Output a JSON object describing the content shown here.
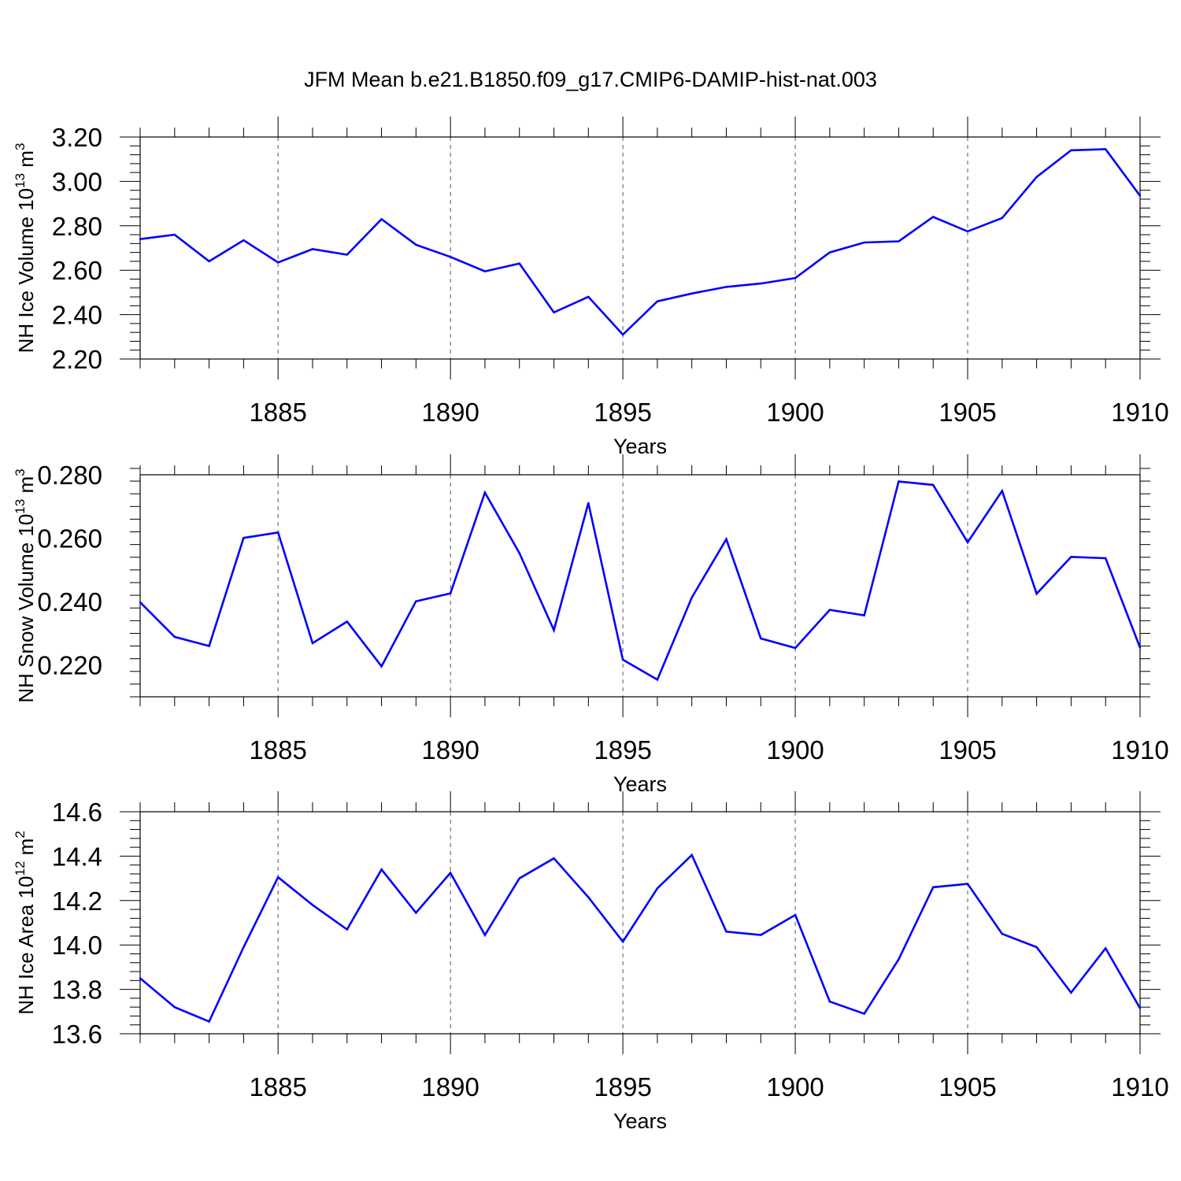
{
  "figure_title": "JFM Mean b.e21.B1850.f09_g17.CMIP6-DAMIP-hist-nat.003",
  "colors": {
    "series": "#0000ff",
    "axis": "#000000",
    "grid": "#555555"
  },
  "chart_data": [
    {
      "type": "line",
      "title": "JFM Mean b.e21.B1850.f09_g17.CMIP6-DAMIP-hist-nat.003",
      "ylabel_base": "NH Ice Volume 10",
      "ylabel_exp": "13",
      "ylabel_unit": " m",
      "ylabel_unit_exp": "3",
      "xlabel": "Years",
      "xlim": [
        1881,
        1910
      ],
      "ylim": [
        2.2,
        3.2
      ],
      "xticks": [
        "1885",
        "1890",
        "1895",
        "1900",
        "1905",
        "1910"
      ],
      "yticks": [
        "2.20",
        "2.40",
        "2.60",
        "2.80",
        "3.00",
        "3.20"
      ],
      "grid": "vertical dashed at major x ticks",
      "x": [
        1881,
        1882,
        1883,
        1884,
        1885,
        1886,
        1887,
        1888,
        1889,
        1890,
        1891,
        1892,
        1893,
        1894,
        1895,
        1896,
        1897,
        1898,
        1899,
        1900,
        1901,
        1902,
        1903,
        1904,
        1905,
        1906,
        1907,
        1908,
        1909,
        1910
      ],
      "series": [
        {
          "name": "NH Ice Volume",
          "values": [
            2.74,
            2.76,
            2.64,
            2.735,
            2.635,
            2.695,
            2.67,
            2.83,
            2.715,
            2.66,
            2.595,
            2.63,
            2.41,
            2.48,
            2.31,
            2.46,
            2.495,
            2.525,
            2.54,
            2.565,
            2.68,
            2.725,
            2.73,
            2.84,
            2.775,
            2.835,
            3.02,
            3.14,
            3.145,
            2.935
          ]
        }
      ]
    },
    {
      "type": "line",
      "ylabel_base": "NH Snow Volume 10",
      "ylabel_exp": "13",
      "ylabel_unit": " m",
      "ylabel_unit_exp": "3",
      "xlabel": "Years",
      "xlim": [
        1881,
        1910
      ],
      "ylim": [
        0.21,
        0.28
      ],
      "xticks": [
        "1885",
        "1890",
        "1895",
        "1900",
        "1905",
        "1910"
      ],
      "yticks": [
        "0.220",
        "0.240",
        "0.260",
        "0.280"
      ],
      "grid": "vertical dashed at major x ticks",
      "x": [
        1881,
        1882,
        1883,
        1884,
        1885,
        1886,
        1887,
        1888,
        1889,
        1890,
        1891,
        1892,
        1893,
        1894,
        1895,
        1896,
        1897,
        1898,
        1899,
        1900,
        1901,
        1902,
        1903,
        1904,
        1905,
        1906,
        1907,
        1908,
        1909,
        1910
      ],
      "series": [
        {
          "name": "NH Snow Volume",
          "values": [
            0.2398,
            0.2289,
            0.226,
            0.2601,
            0.2618,
            0.2269,
            0.2337,
            0.2196,
            0.2401,
            0.2426,
            0.2744,
            0.2553,
            0.231,
            0.2711,
            0.2217,
            0.2154,
            0.2413,
            0.2597,
            0.2284,
            0.2254,
            0.2374,
            0.2357,
            0.2779,
            0.2768,
            0.2587,
            0.2749,
            0.2425,
            0.2541,
            0.2537,
            0.2255
          ]
        }
      ]
    },
    {
      "type": "line",
      "ylabel_base": "NH Ice Area 10",
      "ylabel_exp": "12",
      "ylabel_unit": " m",
      "ylabel_unit_exp": "2",
      "xlabel": "Years",
      "xlim": [
        1881,
        1910
      ],
      "ylim": [
        13.6,
        14.6
      ],
      "xticks": [
        "1885",
        "1890",
        "1895",
        "1900",
        "1905",
        "1910"
      ],
      "yticks": [
        "13.6",
        "13.8",
        "14.0",
        "14.2",
        "14.4",
        "14.6"
      ],
      "grid": "vertical dashed at major x ticks",
      "x": [
        1881,
        1882,
        1883,
        1884,
        1885,
        1886,
        1887,
        1888,
        1889,
        1890,
        1891,
        1892,
        1893,
        1894,
        1895,
        1896,
        1897,
        1898,
        1899,
        1900,
        1901,
        1902,
        1903,
        1904,
        1905,
        1906,
        1907,
        1908,
        1909,
        1910
      ],
      "series": [
        {
          "name": "NH Ice Area",
          "values": [
            13.85,
            13.72,
            13.655,
            13.99,
            14.305,
            14.18,
            14.07,
            14.34,
            14.145,
            14.325,
            14.045,
            14.3,
            14.39,
            14.215,
            14.015,
            14.255,
            14.405,
            14.06,
            14.045,
            14.135,
            13.745,
            13.69,
            13.935,
            14.26,
            14.275,
            14.05,
            13.99,
            13.785,
            13.985,
            13.715
          ]
        }
      ]
    }
  ]
}
